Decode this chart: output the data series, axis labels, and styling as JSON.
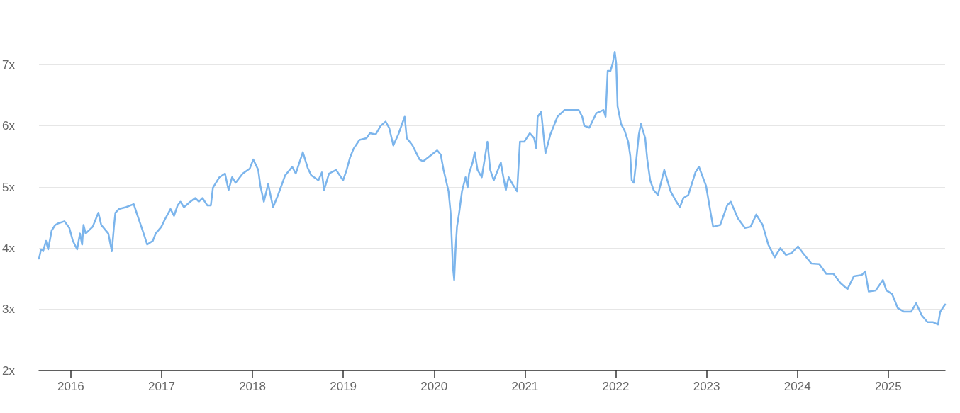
{
  "chart_data": {
    "type": "line",
    "xlim": [
      2015.65,
      2025.626
    ],
    "ylim": [
      2,
      8
    ],
    "xticks": [
      2016,
      2017,
      2018,
      2019,
      2020,
      2021,
      2022,
      2023,
      2024,
      2025
    ],
    "yticks": [
      {
        "value": 2,
        "label": "2x"
      },
      {
        "value": 3,
        "label": "3x"
      },
      {
        "value": 4,
        "label": "4x"
      },
      {
        "value": 5,
        "label": "5x"
      },
      {
        "value": 6,
        "label": "6x"
      },
      {
        "value": 7,
        "label": "7x"
      },
      {
        "value": 8,
        "label": null
      }
    ],
    "grid": "y",
    "marker": "none",
    "line_style": "solid",
    "series": [
      {
        "color": "#7cb5ec",
        "x": [
          2015.65,
          2015.673,
          2015.696,
          2015.727,
          2015.751,
          2015.79,
          2015.829,
          2015.868,
          2015.93,
          2015.984,
          2016.023,
          2016.07,
          2016.101,
          2016.125,
          2016.14,
          2016.164,
          2016.241,
          2016.304,
          2016.335,
          2016.413,
          2016.452,
          2016.475,
          2016.491,
          2016.53,
          2016.607,
          2016.693,
          2016.724,
          2016.763,
          2016.802,
          2016.841,
          2016.903,
          2016.935,
          2016.997,
          2017.036,
          2017.098,
          2017.137,
          2017.176,
          2017.207,
          2017.246,
          2017.316,
          2017.371,
          2017.41,
          2017.449,
          2017.503,
          2017.542,
          2017.565,
          2017.636,
          2017.698,
          2017.737,
          2017.776,
          2017.815,
          2017.893,
          2017.97,
          2018.009,
          2018.064,
          2018.087,
          2018.126,
          2018.173,
          2018.227,
          2018.282,
          2018.36,
          2018.438,
          2018.477,
          2018.555,
          2018.609,
          2018.648,
          2018.726,
          2018.765,
          2018.788,
          2018.843,
          2018.921,
          2018.998,
          2019.037,
          2019.076,
          2019.115,
          2019.178,
          2019.255,
          2019.294,
          2019.357,
          2019.411,
          2019.466,
          2019.505,
          2019.551,
          2019.606,
          2019.676,
          2019.699,
          2019.762,
          2019.84,
          2019.879,
          2019.956,
          2020.034,
          2020.073,
          2020.104,
          2020.159,
          2020.182,
          2020.206,
          2020.221,
          2020.237,
          2020.252,
          2020.276,
          2020.307,
          2020.346,
          2020.369,
          2020.385,
          2020.424,
          2020.447,
          2020.478,
          2020.525,
          2020.587,
          2020.618,
          2020.657,
          2020.735,
          2020.759,
          2020.79,
          2020.821,
          2020.875,
          2020.914,
          2020.945,
          2020.992,
          2021.054,
          2021.101,
          2021.125,
          2021.14,
          2021.179,
          2021.226,
          2021.28,
          2021.358,
          2021.436,
          2021.514,
          2021.592,
          2021.631,
          2021.654,
          2021.709,
          2021.787,
          2021.865,
          2021.888,
          2021.911,
          2021.942,
          2021.966,
          2021.989,
          2022.005,
          2022.02,
          2022.059,
          2022.098,
          2022.137,
          2022.16,
          2022.176,
          2022.199,
          2022.223,
          2022.254,
          2022.277,
          2022.324,
          2022.347,
          2022.379,
          2022.417,
          2022.464,
          2022.534,
          2022.604,
          2022.659,
          2022.706,
          2022.745,
          2022.799,
          2022.877,
          2022.916,
          2022.994,
          2023.048,
          2023.072,
          2023.15,
          2023.227,
          2023.266,
          2023.344,
          2023.422,
          2023.484,
          2023.547,
          2023.617,
          2023.679,
          2023.749,
          2023.812,
          2023.874,
          2023.936,
          2024.006,
          2024.061,
          2024.154,
          2024.24,
          2024.318,
          2024.396,
          2024.474,
          2024.551,
          2024.621,
          2024.707,
          2024.746,
          2024.785,
          2024.863,
          2024.941,
          2024.98,
          2025.042,
          2025.105,
          2025.174,
          2025.252,
          2025.307,
          2025.369,
          2025.432,
          2025.494,
          2025.548,
          2025.572,
          2025.626
        ],
        "values": [
          3.83,
          3.98,
          3.95,
          4.12,
          3.98,
          4.29,
          4.38,
          4.41,
          4.44,
          4.33,
          4.12,
          3.98,
          4.24,
          4.06,
          4.38,
          4.24,
          4.35,
          4.58,
          4.38,
          4.24,
          3.95,
          4.35,
          4.58,
          4.64,
          4.67,
          4.72,
          4.58,
          4.41,
          4.24,
          4.06,
          4.12,
          4.24,
          4.35,
          4.47,
          4.64,
          4.53,
          4.7,
          4.76,
          4.67,
          4.76,
          4.82,
          4.76,
          4.82,
          4.7,
          4.7,
          4.99,
          5.16,
          5.22,
          4.95,
          5.16,
          5.07,
          5.22,
          5.3,
          5.45,
          5.28,
          5.02,
          4.76,
          5.05,
          4.67,
          4.87,
          5.19,
          5.33,
          5.22,
          5.57,
          5.31,
          5.19,
          5.11,
          5.24,
          4.95,
          5.22,
          5.28,
          5.11,
          5.28,
          5.49,
          5.63,
          5.77,
          5.8,
          5.88,
          5.86,
          6.0,
          6.07,
          5.97,
          5.68,
          5.86,
          6.15,
          5.8,
          5.68,
          5.45,
          5.42,
          5.51,
          5.6,
          5.53,
          5.28,
          4.93,
          4.58,
          3.71,
          3.48,
          4.0,
          4.35,
          4.58,
          4.93,
          5.16,
          4.99,
          5.22,
          5.4,
          5.57,
          5.28,
          5.16,
          5.74,
          5.28,
          5.11,
          5.4,
          5.19,
          4.95,
          5.16,
          5.02,
          4.93,
          5.74,
          5.74,
          5.88,
          5.8,
          5.63,
          6.15,
          6.23,
          5.55,
          5.86,
          6.15,
          6.26,
          6.26,
          6.26,
          6.15,
          6.0,
          5.97,
          6.21,
          6.26,
          6.15,
          6.9,
          6.9,
          7.02,
          7.21,
          7.02,
          6.32,
          6.03,
          5.92,
          5.74,
          5.51,
          5.11,
          5.07,
          5.4,
          5.86,
          6.03,
          5.8,
          5.45,
          5.11,
          4.95,
          4.87,
          5.28,
          4.93,
          4.78,
          4.67,
          4.82,
          4.87,
          5.24,
          5.33,
          5.02,
          4.55,
          4.35,
          4.38,
          4.7,
          4.76,
          4.49,
          4.33,
          4.35,
          4.55,
          4.38,
          4.06,
          3.85,
          4.0,
          3.89,
          3.92,
          4.03,
          3.92,
          3.75,
          3.74,
          3.58,
          3.58,
          3.43,
          3.33,
          3.54,
          3.56,
          3.62,
          3.29,
          3.31,
          3.48,
          3.31,
          3.25,
          3.02,
          2.96,
          2.96,
          3.1,
          2.9,
          2.79,
          2.79,
          2.75,
          2.96,
          3.08
        ]
      }
    ]
  }
}
